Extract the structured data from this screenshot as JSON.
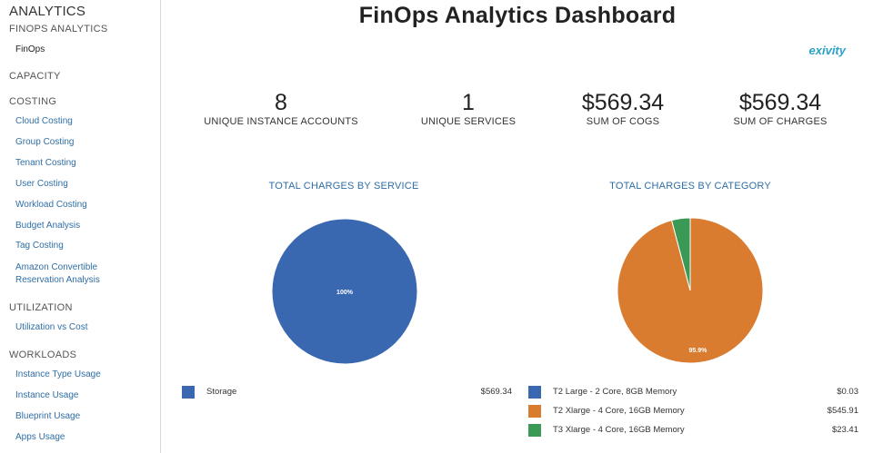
{
  "sidebar": {
    "title": "ANALYTICS",
    "sections": {
      "finops": {
        "label": "FINOPS ANALYTICS",
        "items": [
          "FinOps"
        ]
      },
      "capacity": {
        "label": "CAPACITY",
        "items": []
      },
      "costing": {
        "label": "COSTING",
        "items": [
          "Cloud Costing",
          "Group Costing",
          "Tenant Costing",
          "User Costing",
          "Workload Costing",
          "Budget Analysis",
          "Tag Costing",
          "Amazon Convertible",
          "Reservation Analysis"
        ]
      },
      "utilization": {
        "label": "UTILIZATION",
        "items": [
          "Utilization vs Cost"
        ]
      },
      "workloads": {
        "label": "WORKLOADS",
        "items": [
          "Instance Type Usage",
          "Instance Usage",
          "Blueprint Usage",
          "Apps Usage"
        ]
      }
    }
  },
  "header": {
    "title": "FinOps Analytics Dashboard",
    "logo": "exivity"
  },
  "kpis": [
    {
      "value": "8",
      "label": "UNIQUE INSTANCE ACCOUNTS"
    },
    {
      "value": "1",
      "label": "UNIQUE SERVICES"
    },
    {
      "value": "$569.34",
      "label": "SUM OF COGS"
    },
    {
      "value": "$569.34",
      "label": "SUM OF CHARGES"
    }
  ],
  "chart_data": [
    {
      "type": "pie",
      "title": "TOTAL CHARGES BY SERVICE",
      "categories": [
        "Storage"
      ],
      "values": [
        569.34
      ],
      "value_labels": [
        "$569.34"
      ],
      "slice_labels": [
        "100%"
      ],
      "colors": [
        "#3a68b0"
      ]
    },
    {
      "type": "pie",
      "title": "TOTAL CHARGES BY CATEGORY",
      "categories": [
        "T2 Large - 2 Core, 8GB Memory",
        "T2 Xlarge - 4 Core, 16GB Memory",
        "T3 Xlarge - 4 Core, 16GB Memory"
      ],
      "values": [
        0.03,
        545.91,
        23.41
      ],
      "value_labels": [
        "$0.03",
        "$545.91",
        "$23.41"
      ],
      "slice_labels": [
        "",
        "95.9%",
        ""
      ],
      "colors": [
        "#3a68b0",
        "#d97c2f",
        "#3a9a55"
      ]
    }
  ]
}
